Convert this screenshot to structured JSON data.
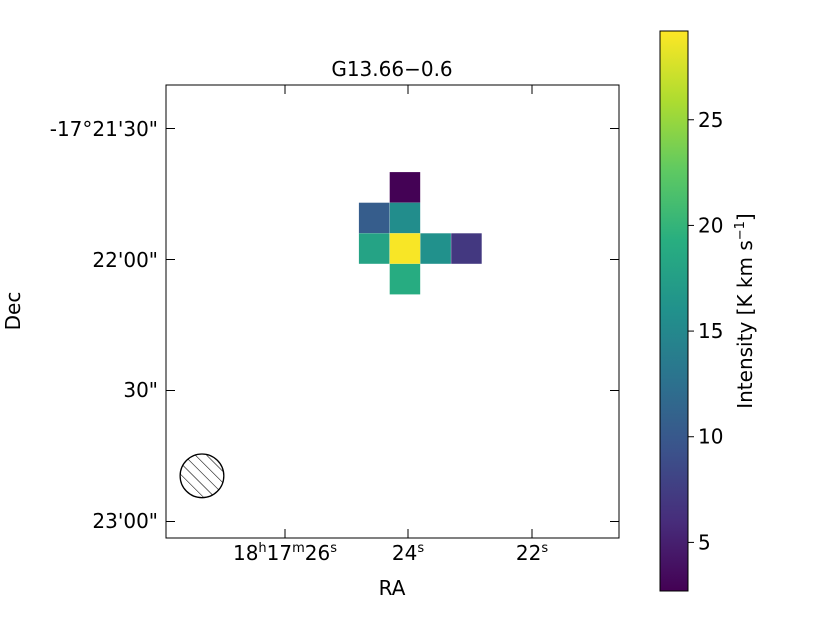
{
  "chart_data": {
    "type": "heatmap",
    "title": "G13.66−0.6",
    "xlabel": "RA",
    "ylabel": "Dec",
    "x_ticks": [
      {
        "h": "18",
        "m": "17",
        "s": "26"
      },
      {
        "h": "",
        "m": "",
        "s": "24"
      },
      {
        "h": "",
        "m": "",
        "s": "22"
      }
    ],
    "y_ticks": [
      "-17°21'30\"",
      "22'00\"",
      "30\"",
      "23'00\""
    ],
    "x_unit_h": "h",
    "x_unit_m": "m",
    "x_unit_s": "s",
    "grid": false,
    "cells": [
      {
        "ra_s": 24.05,
        "dec_off_s": 16.5,
        "value": 2.8
      },
      {
        "ra_s": 24.55,
        "dec_off_s": 9.5,
        "value": 10.5
      },
      {
        "ra_s": 24.05,
        "dec_off_s": 9.5,
        "value": 15.5
      },
      {
        "ra_s": 24.55,
        "dec_off_s": 2.5,
        "value": 18.0
      },
      {
        "ra_s": 24.05,
        "dec_off_s": 2.5,
        "value": 29.0
      },
      {
        "ra_s": 23.55,
        "dec_off_s": 2.5,
        "value": 16.0
      },
      {
        "ra_s": 23.05,
        "dec_off_s": 2.5,
        "value": 7.0
      },
      {
        "ra_s": 24.05,
        "dec_off_s": -4.5,
        "value": 19.0
      }
    ],
    "colorbar": {
      "label": "Intensity [K km s",
      "label_exp": "−1",
      "label_close": "]",
      "min": 2.7,
      "max": 29.2,
      "ticks": [
        5,
        10,
        15,
        20,
        25
      ],
      "colormap": "viridis"
    },
    "beam": {
      "ra_s": 27.35,
      "dec_off_s": -49.5,
      "radius_arcsec": 5.0
    }
  }
}
